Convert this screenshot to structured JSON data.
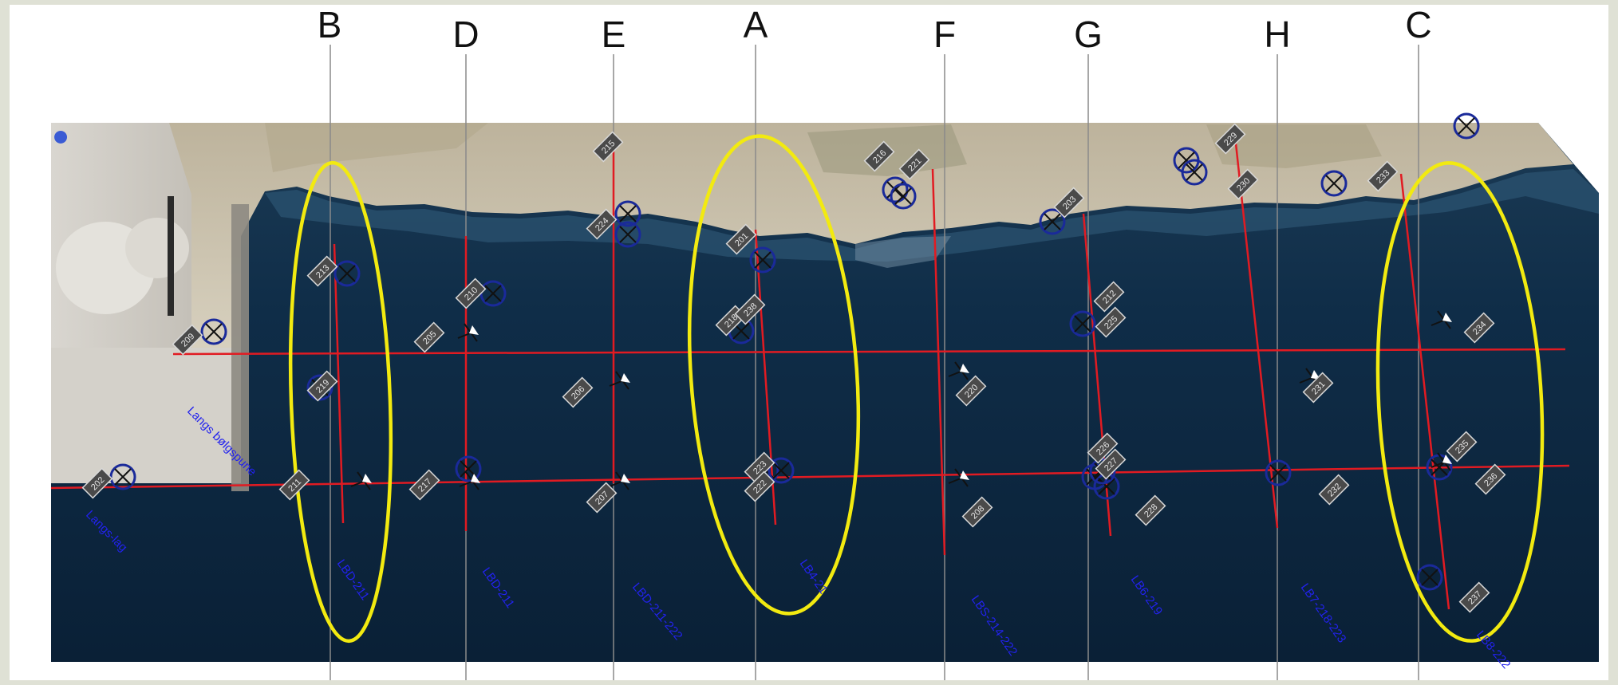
{
  "figure": {
    "column_labels": [
      "B",
      "D",
      "E",
      "A",
      "F",
      "G",
      "H",
      "C"
    ],
    "line_labels": [
      "Langs bølgspune",
      "Langs-lag",
      "LBD-211",
      "LBD-211",
      "LBD-211-222",
      "LB4-21",
      "LBS-214-222",
      "LB6-219",
      "LB7-218-223",
      "LB8-222"
    ],
    "station_tags": [
      "213",
      "205",
      "210",
      "211",
      "217",
      "219",
      "202",
      "209",
      "215",
      "224",
      "206",
      "207",
      "201",
      "218",
      "223",
      "222",
      "216",
      "221",
      "220",
      "208",
      "203",
      "212",
      "225",
      "226",
      "227",
      "228",
      "229",
      "230",
      "231",
      "232",
      "233",
      "234",
      "235",
      "236",
      "237",
      "238"
    ],
    "colors": {
      "water": "#0d2a44",
      "water_deep": "#0b2238",
      "sand": "#cfc7b3",
      "survey_line": "#e11b22",
      "highlight_ellipse": "#f2ea10",
      "marker_blue": "#1a2a9a",
      "label_blue": "#2222ee",
      "guide_line": "#8a8a8a"
    },
    "icons": [
      "crossed-circle-icon",
      "pin-marker-icon"
    ]
  }
}
